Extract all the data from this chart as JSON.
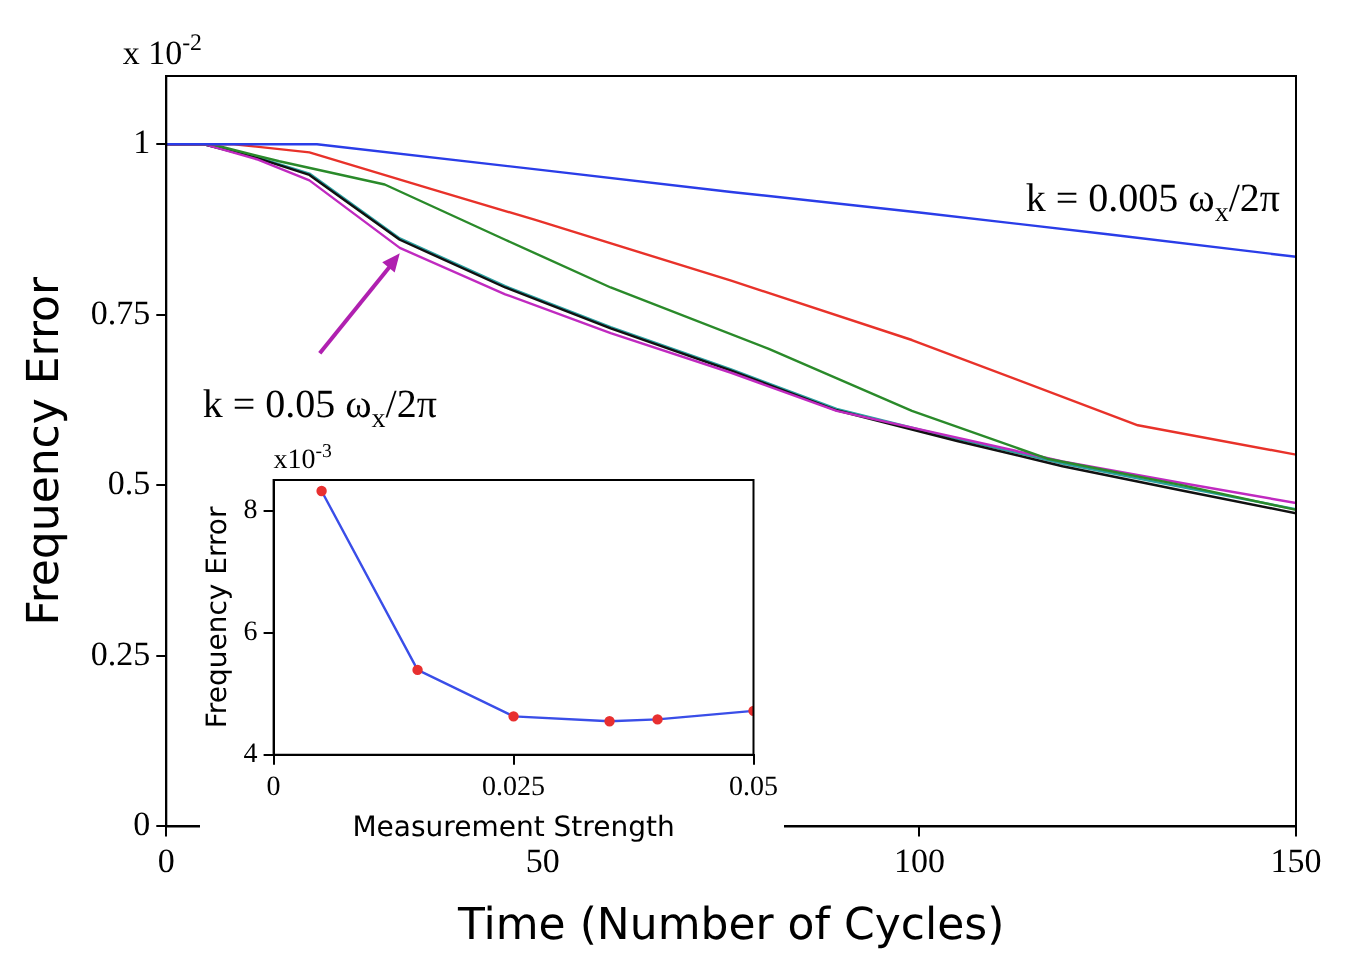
{
  "chart_data": [
    {
      "type": "line",
      "xlabel": "Time (Number of Cycles)",
      "ylabel": "Frequency Error",
      "xlim": [
        0,
        150
      ],
      "ylim": [
        0,
        1.1
      ],
      "xticks": [
        0,
        50,
        100,
        150
      ],
      "yticks": [
        0,
        0.25,
        0.5,
        0.75,
        1
      ],
      "grid": false,
      "legend": false,
      "marker": "none",
      "annotations": [
        "x 10$^{-2}$",
        "k = 0.005 ω$_{x}$/2π",
        {
          "text": "k = 0.05 ω$_{x}$/2π",
          "x": 31,
          "y": 0.84
        }
      ],
      "series": [
        {
          "color": "#2a3de8",
          "x": [
            0,
            20,
            50,
            75,
            100,
            125,
            150
          ],
          "values": [
            1,
            1,
            0.962,
            0.93,
            0.9,
            0.868,
            0.835
          ]
        },
        {
          "color": "#e8322a",
          "x": [
            0,
            9,
            19,
            35,
            49,
            75,
            99,
            129,
            150
          ],
          "values": [
            1,
            1,
            0.988,
            0.935,
            0.889,
            0.8,
            0.713,
            0.588,
            0.545
          ]
        },
        {
          "color": "#2a8a2a",
          "x": [
            0,
            6,
            15,
            29,
            45,
            59,
            80,
            99,
            117,
            135,
            150
          ],
          "values": [
            1,
            1,
            0.975,
            0.941,
            0.86,
            0.79,
            0.7,
            0.609,
            0.539,
            0.5,
            0.464
          ]
        },
        {
          "color": "#c02ac0",
          "x": [
            0,
            5,
            12,
            19,
            31,
            45,
            59,
            75,
            89,
            105,
            119,
            135,
            150
          ],
          "values": [
            1,
            1,
            0.978,
            0.947,
            0.848,
            0.78,
            0.723,
            0.665,
            0.609,
            0.57,
            0.535,
            0.503,
            0.474
          ]
        },
        {
          "color": "#111111",
          "x": [
            0,
            5,
            12,
            19,
            31,
            45,
            59,
            75,
            89,
            105,
            119,
            135,
            150
          ],
          "values": [
            1,
            1,
            0.98,
            0.955,
            0.86,
            0.79,
            0.73,
            0.668,
            0.61,
            0.565,
            0.528,
            0.492,
            0.459
          ]
        },
        {
          "color": "#2aa0a0",
          "x": [
            0,
            5,
            12,
            19,
            31,
            45,
            59,
            75,
            89,
            105,
            119,
            135,
            150
          ],
          "values": [
            1,
            1,
            0.981,
            0.957,
            0.862,
            0.792,
            0.732,
            0.67,
            0.612,
            0.568,
            0.532,
            0.497,
            0.465
          ]
        }
      ]
    },
    {
      "type": "line",
      "xlabel": "Measurement Strength",
      "ylabel": "Frequency Error",
      "xlim": [
        0,
        0.05
      ],
      "ylim": [
        4,
        8.5
      ],
      "xticks": [
        0,
        0.025,
        0.05
      ],
      "yticks": [
        4,
        6,
        8
      ],
      "grid": false,
      "legend": false,
      "marker": "circle",
      "annotations": [
        "x10$^{-3}$"
      ],
      "series": [
        {
          "color": "#3a4ee8",
          "colors": [
            "#e83030",
            "#e83030",
            "#e83030",
            "#e83030",
            "#e83030",
            "#e83030"
          ],
          "x": [
            0.005,
            0.015,
            0.025,
            0.035,
            0.04,
            0.05
          ],
          "values": [
            8.32,
            5.39,
            4.63,
            4.55,
            4.58,
            4.72
          ]
        }
      ]
    }
  ]
}
